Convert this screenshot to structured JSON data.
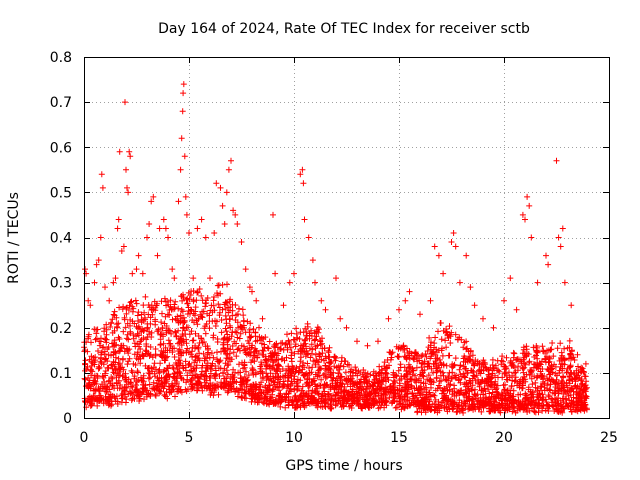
{
  "chart_data": {
    "type": "scatter",
    "title": "Day 164 of 2024, Rate Of TEC Index for receiver sctb",
    "xlabel": "GPS time / hours",
    "ylabel": "ROTI / TECUs",
    "xlim": [
      0,
      25
    ],
    "ylim": [
      0,
      0.8
    ],
    "x_ticks": [
      0,
      5,
      10,
      15,
      20,
      25
    ],
    "x_tick_labels": [
      "0",
      "5",
      "10",
      "15",
      "20",
      "25"
    ],
    "y_ticks": [
      0,
      0.1,
      0.2,
      0.3,
      0.4,
      0.5,
      0.6,
      0.7,
      0.8
    ],
    "y_tick_labels": [
      "0",
      "0.1",
      "0.2",
      "0.3",
      "0.4",
      "0.5",
      "0.6",
      "0.7",
      "0.8"
    ],
    "grid": true,
    "marker": "plus",
    "color": "#ff0000",
    "series": [
      {
        "name": "ROTI",
        "points": [
          [
            0.05,
            0.33
          ],
          [
            0.1,
            0.32
          ],
          [
            0.2,
            0.26
          ],
          [
            0.3,
            0.25
          ],
          [
            0.5,
            0.3
          ],
          [
            0.6,
            0.34
          ],
          [
            0.7,
            0.35
          ],
          [
            0.8,
            0.4
          ],
          [
            0.85,
            0.54
          ],
          [
            0.9,
            0.51
          ],
          [
            1.0,
            0.29
          ],
          [
            1.2,
            0.26
          ],
          [
            1.4,
            0.3
          ],
          [
            1.5,
            0.31
          ],
          [
            1.6,
            0.42
          ],
          [
            1.65,
            0.44
          ],
          [
            1.7,
            0.59
          ],
          [
            1.8,
            0.37
          ],
          [
            1.9,
            0.38
          ],
          [
            1.95,
            0.7
          ],
          [
            2.0,
            0.55
          ],
          [
            2.05,
            0.51
          ],
          [
            2.1,
            0.5
          ],
          [
            2.15,
            0.59
          ],
          [
            2.2,
            0.58
          ],
          [
            2.3,
            0.32
          ],
          [
            2.5,
            0.33
          ],
          [
            2.6,
            0.36
          ],
          [
            2.8,
            0.32
          ],
          [
            3.0,
            0.4
          ],
          [
            3.1,
            0.43
          ],
          [
            3.2,
            0.48
          ],
          [
            3.3,
            0.49
          ],
          [
            3.5,
            0.36
          ],
          [
            3.6,
            0.42
          ],
          [
            3.8,
            0.44
          ],
          [
            3.9,
            0.42
          ],
          [
            4.0,
            0.4
          ],
          [
            4.2,
            0.33
          ],
          [
            4.3,
            0.31
          ],
          [
            4.5,
            0.48
          ],
          [
            4.6,
            0.55
          ],
          [
            4.65,
            0.62
          ],
          [
            4.7,
            0.68
          ],
          [
            4.72,
            0.72
          ],
          [
            4.75,
            0.74
          ],
          [
            4.8,
            0.58
          ],
          [
            4.85,
            0.49
          ],
          [
            4.9,
            0.45
          ],
          [
            5.0,
            0.41
          ],
          [
            5.2,
            0.31
          ],
          [
            5.4,
            0.42
          ],
          [
            5.6,
            0.44
          ],
          [
            5.8,
            0.4
          ],
          [
            6.0,
            0.31
          ],
          [
            6.2,
            0.41
          ],
          [
            6.3,
            0.52
          ],
          [
            6.5,
            0.51
          ],
          [
            6.6,
            0.47
          ],
          [
            6.7,
            0.43
          ],
          [
            6.8,
            0.5
          ],
          [
            6.9,
            0.55
          ],
          [
            7.0,
            0.57
          ],
          [
            7.1,
            0.46
          ],
          [
            7.2,
            0.45
          ],
          [
            7.3,
            0.43
          ],
          [
            7.5,
            0.39
          ],
          [
            7.7,
            0.33
          ],
          [
            7.9,
            0.29
          ],
          [
            8.0,
            0.28
          ],
          [
            8.2,
            0.26
          ],
          [
            8.5,
            0.22
          ],
          [
            9.0,
            0.45
          ],
          [
            9.1,
            0.32
          ],
          [
            9.5,
            0.25
          ],
          [
            9.8,
            0.3
          ],
          [
            10.0,
            0.32
          ],
          [
            10.3,
            0.54
          ],
          [
            10.4,
            0.55
          ],
          [
            10.45,
            0.52
          ],
          [
            10.5,
            0.44
          ],
          [
            10.7,
            0.4
          ],
          [
            10.9,
            0.35
          ],
          [
            11.0,
            0.3
          ],
          [
            11.3,
            0.26
          ],
          [
            11.5,
            0.24
          ],
          [
            12.0,
            0.31
          ],
          [
            12.2,
            0.22
          ],
          [
            12.5,
            0.2
          ],
          [
            13.0,
            0.17
          ],
          [
            13.5,
            0.16
          ],
          [
            14.0,
            0.17
          ],
          [
            14.5,
            0.22
          ],
          [
            15.0,
            0.24
          ],
          [
            15.3,
            0.26
          ],
          [
            15.5,
            0.28
          ],
          [
            16.0,
            0.23
          ],
          [
            16.5,
            0.26
          ],
          [
            16.7,
            0.38
          ],
          [
            16.9,
            0.36
          ],
          [
            17.1,
            0.32
          ],
          [
            17.5,
            0.39
          ],
          [
            17.6,
            0.41
          ],
          [
            17.7,
            0.38
          ],
          [
            17.9,
            0.3
          ],
          [
            18.2,
            0.36
          ],
          [
            18.4,
            0.29
          ],
          [
            18.6,
            0.25
          ],
          [
            19.0,
            0.22
          ],
          [
            19.5,
            0.2
          ],
          [
            20.0,
            0.26
          ],
          [
            20.3,
            0.31
          ],
          [
            20.6,
            0.24
          ],
          [
            20.9,
            0.45
          ],
          [
            21.0,
            0.44
          ],
          [
            21.1,
            0.49
          ],
          [
            21.2,
            0.47
          ],
          [
            21.3,
            0.4
          ],
          [
            21.6,
            0.3
          ],
          [
            22.0,
            0.36
          ],
          [
            22.1,
            0.34
          ],
          [
            22.5,
            0.57
          ],
          [
            22.6,
            0.4
          ],
          [
            22.7,
            0.38
          ],
          [
            22.8,
            0.42
          ],
          [
            22.9,
            0.3
          ],
          [
            23.2,
            0.25
          ],
          [
            23.5,
            0.14
          ],
          [
            23.9,
            0.12
          ]
        ],
        "envelope": {
          "hours": [
            0,
            1,
            2,
            3,
            4,
            5,
            6,
            7,
            8,
            9,
            10,
            11,
            12,
            13,
            14,
            15,
            16,
            17,
            18,
            19,
            20,
            21,
            22,
            23,
            24
          ],
          "base": [
            0.04,
            0.04,
            0.05,
            0.06,
            0.06,
            0.08,
            0.07,
            0.07,
            0.05,
            0.04,
            0.04,
            0.04,
            0.04,
            0.04,
            0.04,
            0.04,
            0.03,
            0.03,
            0.03,
            0.03,
            0.03,
            0.03,
            0.03,
            0.03,
            0.03
          ],
          "dense_top": [
            0.2,
            0.22,
            0.27,
            0.27,
            0.27,
            0.29,
            0.3,
            0.3,
            0.22,
            0.17,
            0.2,
            0.22,
            0.14,
            0.12,
            0.12,
            0.18,
            0.15,
            0.22,
            0.19,
            0.13,
            0.15,
            0.17,
            0.17,
            0.19,
            0.1
          ]
        }
      }
    ]
  }
}
